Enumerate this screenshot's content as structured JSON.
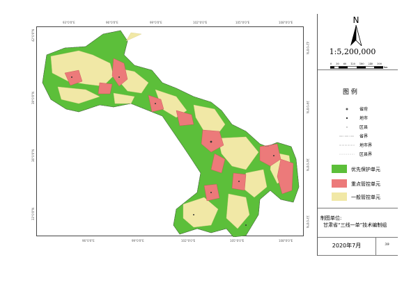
{
  "map": {
    "top_ticks": [
      "93°0'0\"E",
      "96°0'0\"E",
      "99°0'0\"E",
      "102°0'0\"E",
      "105°0'0\"E",
      "108°0'0\"E"
    ],
    "bottom_ticks": [
      "96°0'0\"E",
      "99°0'0\"E",
      "102°0'0\"E",
      "105°0'0\"E",
      "108°0'0\"E"
    ],
    "left_ticks": [
      "42°0'0\"N",
      "39°0'0\"N",
      "36°0'0\"N",
      "33°0'0\"N"
    ],
    "right_ticks": [
      "42°0'0\"N",
      "39°0'0\"N",
      "36°0'0\"N",
      "33°0'0\"N"
    ],
    "colors": {
      "priority_protection": "#5cbf3a",
      "key_control": "#ec7a7a",
      "general_control": "#f1e8a6"
    }
  },
  "panel": {
    "north_label": "N",
    "scale": "1:5,200,000",
    "scale_ticks": [
      "0",
      "30",
      "60",
      "120",
      "180",
      "240",
      "300"
    ],
    "scale_unit": "km",
    "legend_title": "图  例",
    "symbols": [
      {
        "label": "省府",
        "icon": "capital-dot-icon"
      },
      {
        "label": "地市",
        "icon": "city-dot-icon"
      },
      {
        "label": "区县",
        "icon": "county-dot-icon"
      },
      {
        "label": "省界",
        "icon": "province-boundary-line-icon"
      },
      {
        "label": "地市界",
        "icon": "city-boundary-line-icon"
      },
      {
        "label": "区县界",
        "icon": "county-boundary-line-icon"
      }
    ],
    "categories": [
      {
        "label": "优先保护单元",
        "color": "#5cbf3a"
      },
      {
        "label": "重点管控单元",
        "color": "#ec7a7a"
      },
      {
        "label": "一般管控单元",
        "color": "#f1e8a6"
      }
    ],
    "credit_label": "制图单位:",
    "credit_org": "甘肃省“三线一单”技术编制组",
    "date": "2020年7月",
    "page_number": "39"
  }
}
